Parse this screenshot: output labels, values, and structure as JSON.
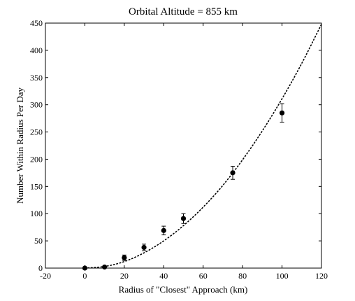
{
  "chart_data": {
    "type": "scatter",
    "title": "Orbital Altitude = 855 km",
    "xlabel": "Radius of \"Closest\" Approach (km)",
    "ylabel": "Number Within Radius Per Day",
    "xlim": [
      -20,
      120
    ],
    "ylim": [
      0,
      450
    ],
    "x_ticks": [
      -20,
      0,
      20,
      40,
      60,
      80,
      100,
      120
    ],
    "y_ticks": [
      0,
      50,
      100,
      150,
      200,
      250,
      300,
      350,
      400,
      450
    ],
    "grid": false,
    "series": [
      {
        "style": "markers-with-errorbars",
        "color": "#000000",
        "points": [
          {
            "x": 0,
            "y": 0,
            "err": 0
          },
          {
            "x": 10,
            "y": 2,
            "err": 1
          },
          {
            "x": 20,
            "y": 19,
            "err": 5
          },
          {
            "x": 30,
            "y": 38,
            "err": 6
          },
          {
            "x": 40,
            "y": 69,
            "err": 8
          },
          {
            "x": 50,
            "y": 91,
            "err": 9
          },
          {
            "x": 75,
            "y": 175,
            "err": 12
          },
          {
            "x": 100,
            "y": 285,
            "err": 17
          }
        ]
      },
      {
        "style": "dotted-curve",
        "color": "#000000",
        "x": [
          0,
          10,
          20,
          30,
          40,
          50,
          60,
          70,
          80,
          90,
          100,
          110,
          120
        ],
        "y": [
          0,
          3,
          12,
          28,
          50,
          78,
          112,
          152,
          199,
          252,
          311,
          376,
          448
        ]
      }
    ]
  }
}
